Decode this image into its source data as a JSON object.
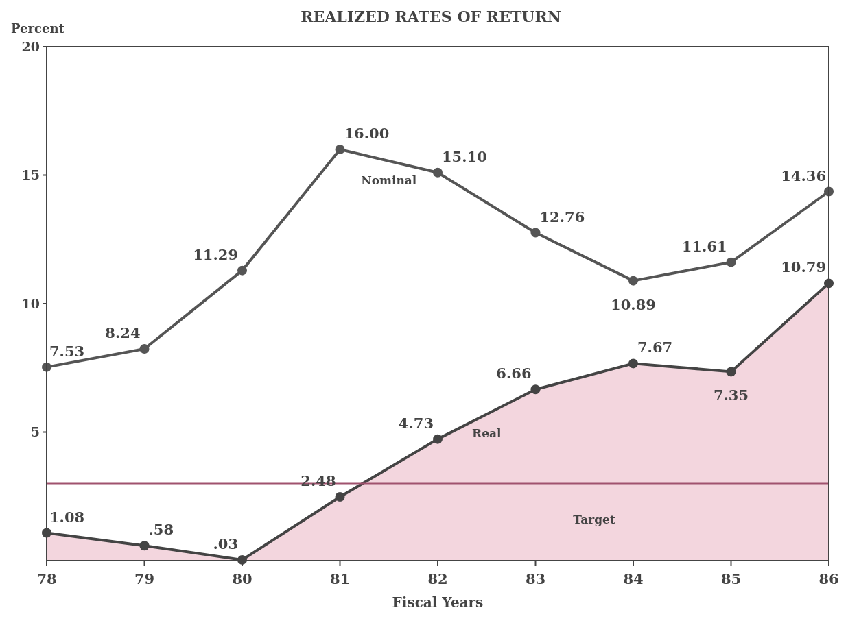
{
  "chart_data": {
    "type": "line",
    "title": "REALIZED RATES OF RETURN",
    "xlabel": "Fiscal Years",
    "ylabel": "Percent",
    "x": [
      78,
      79,
      80,
      81,
      82,
      83,
      84,
      85,
      86
    ],
    "xlim": [
      78,
      86
    ],
    "xticks": [
      78,
      79,
      80,
      81,
      82,
      83,
      84,
      85,
      86
    ],
    "ylim": [
      0,
      20
    ],
    "yticks": [
      5,
      10,
      15,
      20
    ],
    "marker": "circle",
    "grid": false,
    "legend": false,
    "series": [
      {
        "name": "Nominal",
        "color": "#555555",
        "values": [
          7.53,
          8.24,
          11.29,
          16.0,
          15.1,
          12.76,
          10.89,
          11.61,
          14.36
        ],
        "value_labels": [
          "7.53",
          "8.24",
          "11.29",
          "16.00",
          "15.10",
          "12.76",
          "10.89",
          "11.61",
          "14.36"
        ]
      },
      {
        "name": "Real",
        "type": "area",
        "color": "#f3d6de",
        "values": [
          1.08,
          0.58,
          0.03,
          2.48,
          4.73,
          6.66,
          7.67,
          7.35,
          10.79
        ],
        "value_labels": [
          "1.08",
          ".58",
          ".03",
          "2.48",
          "4.73",
          "6.66",
          "7.67",
          "7.35",
          "10.79"
        ]
      }
    ],
    "ref_lines": [
      {
        "axis": "y",
        "value": 3,
        "label": "Target",
        "color": "#a0526e"
      }
    ]
  }
}
